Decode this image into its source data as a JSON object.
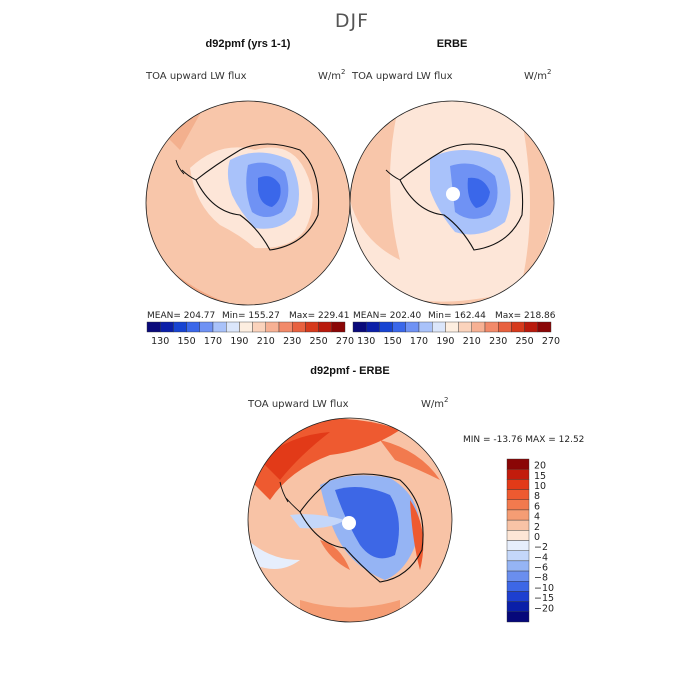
{
  "figure": {
    "title": "DJF"
  },
  "chart_data": [
    {
      "type": "heatmap",
      "title": "d92pmf (yrs 1-1)",
      "variable": "TOA upward LW flux",
      "units": "W/m2",
      "units_base": "W/m",
      "units_exp": "2",
      "projection": "south polar stereographic",
      "stats": {
        "mean": 204.77,
        "min": 155.27,
        "max": 229.41
      },
      "stats_text": {
        "mean": "MEAN= 204.77",
        "min": "Min= 155.27",
        "max": "Max= 229.41"
      },
      "colorbar": {
        "levels": [
          130,
          150,
          170,
          190,
          210,
          230,
          250,
          270
        ],
        "tick_labels": [
          "130",
          "150",
          "170",
          "190",
          "210",
          "230",
          "250",
          "270"
        ],
        "colors": [
          "#0a0a7a",
          "#0b1fa8",
          "#1744d2",
          "#3a67ea",
          "#6f92f4",
          "#a9c2fa",
          "#dbe6fb",
          "#fdeee0",
          "#fbd3bc",
          "#f7b194",
          "#f28a6a",
          "#e8613f",
          "#d63a1c",
          "#b91a0c",
          "#8a0606"
        ]
      }
    },
    {
      "type": "heatmap",
      "title": "ERBE",
      "variable": "TOA upward LW flux",
      "units": "W/m2",
      "units_base": "W/m",
      "units_exp": "2",
      "projection": "south polar stereographic",
      "stats": {
        "mean": 202.4,
        "min": 162.44,
        "max": 218.86
      },
      "stats_text": {
        "mean": "MEAN= 202.40",
        "min": "Min= 162.44",
        "max": "Max= 218.86"
      },
      "colorbar": {
        "levels": [
          130,
          150,
          170,
          190,
          210,
          230,
          250,
          270
        ],
        "tick_labels": [
          "130",
          "150",
          "170",
          "190",
          "210",
          "230",
          "250",
          "270"
        ],
        "colors": [
          "#0a0a7a",
          "#0b1fa8",
          "#1744d2",
          "#3a67ea",
          "#6f92f4",
          "#a9c2fa",
          "#dbe6fb",
          "#fdeee0",
          "#fbd3bc",
          "#f7b194",
          "#f28a6a",
          "#e8613f",
          "#d63a1c",
          "#b91a0c",
          "#8a0606"
        ]
      }
    },
    {
      "type": "heatmap",
      "title": "d92pmf - ERBE",
      "variable": "TOA upward LW flux",
      "units": "W/m2",
      "units_base": "W/m",
      "units_exp": "2",
      "projection": "south polar stereographic",
      "stats": {
        "min": -13.76,
        "max": 12.52
      },
      "stats_text": "MIN = -13.76 MAX =  12.52",
      "colorbar": {
        "levels": [
          20,
          15,
          10,
          8,
          6,
          4,
          2,
          0,
          -2,
          -4,
          -6,
          -8,
          -10,
          -15,
          -20
        ],
        "tick_labels": [
          "20",
          "15",
          "10",
          "8",
          "6",
          "4",
          "2",
          "0",
          "−2",
          "−4",
          "−6",
          "−8",
          "−10",
          "−15",
          "−20"
        ],
        "colors": [
          "#8a0606",
          "#c21c0c",
          "#e23a18",
          "#ee5a30",
          "#f27a4e",
          "#f59d74",
          "#f8c3a6",
          "#fde6d6",
          "#e6eefc",
          "#c4d7fa",
          "#95b4f4",
          "#6a8eee",
          "#3d67e6",
          "#1d3fd0",
          "#0a1fa8",
          "#06087a"
        ]
      }
    }
  ]
}
